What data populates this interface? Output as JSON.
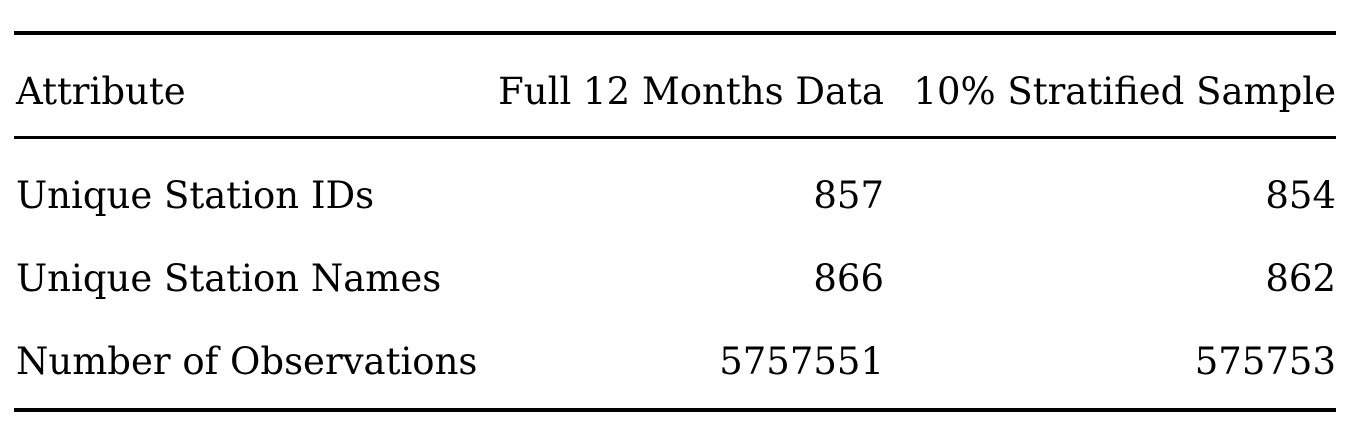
{
  "table": {
    "headers": [
      "Attribute",
      "Full 12 Months Data",
      "10% Stratified Sample"
    ],
    "rows": [
      [
        "Unique Station IDs",
        "857",
        "854"
      ],
      [
        "Unique Station Names",
        "866",
        "862"
      ],
      [
        "Number of Observations",
        "5757551",
        "575753"
      ]
    ]
  }
}
